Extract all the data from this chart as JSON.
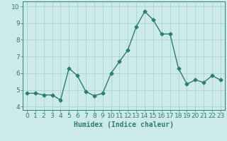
{
  "x": [
    0,
    1,
    2,
    3,
    4,
    5,
    6,
    7,
    8,
    9,
    10,
    11,
    12,
    13,
    14,
    15,
    16,
    17,
    18,
    19,
    20,
    21,
    22,
    23
  ],
  "y": [
    4.8,
    4.8,
    4.7,
    4.7,
    4.4,
    6.3,
    5.85,
    4.9,
    4.65,
    4.8,
    6.0,
    6.7,
    7.4,
    8.8,
    9.7,
    9.2,
    8.35,
    8.35,
    6.3,
    5.35,
    5.6,
    5.45,
    5.85,
    5.6
  ],
  "line_color": "#2e7d6e",
  "marker": "D",
  "marker_size": 2.5,
  "line_width": 1.0,
  "bg_color": "#cceaea",
  "grid_color": "#aad4d4",
  "tick_color": "#2e7d6e",
  "xlabel": "Humidex (Indice chaleur)",
  "xlabel_fontsize": 7,
  "tick_fontsize": 6.5,
  "xlim": [
    -0.5,
    23.5
  ],
  "ylim": [
    3.8,
    10.3
  ],
  "yticks": [
    4,
    5,
    6,
    7,
    8,
    9,
    10
  ],
  "xticks": [
    0,
    1,
    2,
    3,
    4,
    5,
    6,
    7,
    8,
    9,
    10,
    11,
    12,
    13,
    14,
    15,
    16,
    17,
    18,
    19,
    20,
    21,
    22,
    23
  ]
}
